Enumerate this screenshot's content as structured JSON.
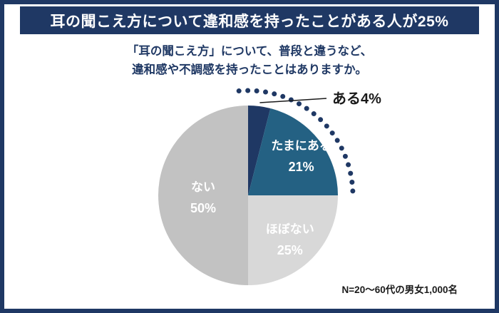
{
  "header": {
    "title": "耳の聞こえ方について違和感を持ったことがある人が25%",
    "bg_color": "#1f3864",
    "text_color": "#ffffff"
  },
  "question": {
    "line1": "「耳の聞こえ方」について、普段と違うなど、",
    "line2": "違和感や不調感を持ったことはありますか。"
  },
  "note": {
    "text": "N=20〜60代の男女1,000名"
  },
  "chart_data": {
    "type": "pie",
    "title": "耳の聞こえ方について違和感を持ったことがある人が25%",
    "subtitle": "「耳の聞こえ方」について、普段と違うなど、違和感や不調感を持ったことはありますか。",
    "unit": "%",
    "start_angle_deg": -90,
    "direction": "clockwise",
    "legend": "none",
    "segments": [
      {
        "label": "ある",
        "value": 4,
        "color": "#1f3864",
        "label_placement": "outside",
        "callout_text": "ある4%",
        "callout_color": "#1a1a1a"
      },
      {
        "label": "たまにある",
        "value": 21,
        "color": "#246183",
        "label_placement": "inside",
        "text_color": "#ffffff",
        "label_radius_frac": 0.75
      },
      {
        "label": "ほぼない",
        "value": 25,
        "color": "#d8d8d8",
        "label_placement": "inside",
        "text_color": "#ffffff",
        "label_radius_frac": 0.66
      },
      {
        "label": "ない",
        "value": 50,
        "color": "#c2c2c2",
        "label_placement": "inside",
        "text_color": "#ffffff",
        "label_radius_frac": 0.5
      }
    ],
    "highlight_arc": {
      "covers_pct_from": 0,
      "covers_pct_to": 25,
      "style": "dotted",
      "color": "#1f3864",
      "meaning": "ある+たまにある=25%"
    },
    "note": "N=20〜60代の男女1,000名"
  }
}
